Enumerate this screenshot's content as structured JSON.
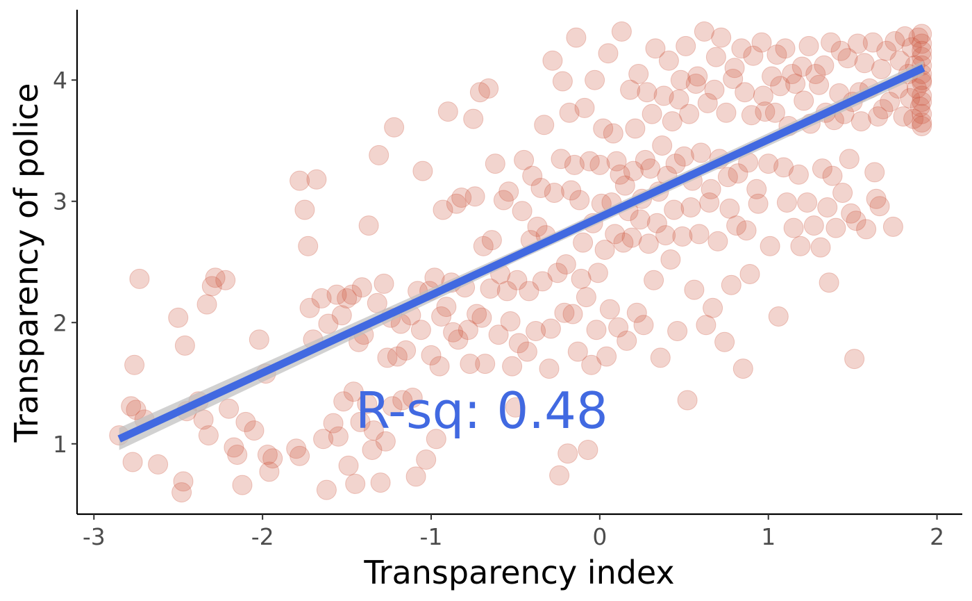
{
  "chart_data": {
    "type": "scatter",
    "title": "",
    "xlabel": "Transparency index",
    "ylabel": "Transparency of police",
    "xlim": [
      -3.1,
      2.15
    ],
    "ylim": [
      0.42,
      4.58
    ],
    "xticks": [
      -3,
      -2,
      -1,
      0,
      1,
      2
    ],
    "xtick_labels": [
      "-3",
      "-2",
      "-1",
      "0",
      "1",
      "2"
    ],
    "yticks": [
      1,
      2,
      3,
      4
    ],
    "ytick_labels": [
      "1",
      "2",
      "3",
      "4"
    ],
    "grid": false,
    "legend": "none",
    "point_color": "#cd533b",
    "point_opacity": 0.25,
    "fit_color": "#4169e1",
    "ci_color": "#bdbdbd",
    "fit_line": {
      "x": [
        -2.85,
        1.92
      ],
      "y": [
        1.04,
        4.1
      ]
    },
    "annotation": {
      "text": "R-sq: 0.48",
      "x": -0.7,
      "y": 1.13
    },
    "points": [
      [
        -2.85,
        1.07
      ],
      [
        -2.78,
        1.31
      ],
      [
        -2.77,
        0.85
      ],
      [
        -2.76,
        1.65
      ],
      [
        -2.75,
        1.28
      ],
      [
        -2.73,
        2.36
      ],
      [
        -2.7,
        1.2
      ],
      [
        -2.62,
        0.83
      ],
      [
        -2.5,
        2.04
      ],
      [
        -2.48,
        0.6
      ],
      [
        -2.47,
        0.69
      ],
      [
        -2.46,
        1.81
      ],
      [
        -2.45,
        1.27
      ],
      [
        -2.38,
        1.35
      ],
      [
        -2.35,
        1.2
      ],
      [
        -2.33,
        2.15
      ],
      [
        -2.32,
        1.07
      ],
      [
        -2.3,
        2.3
      ],
      [
        -2.28,
        2.37
      ],
      [
        -2.22,
        2.35
      ],
      [
        -2.2,
        1.29
      ],
      [
        -2.17,
        0.97
      ],
      [
        -2.15,
        0.91
      ],
      [
        -2.12,
        0.66
      ],
      [
        -2.1,
        1.18
      ],
      [
        -2.05,
        1.11
      ],
      [
        -2.02,
        1.86
      ],
      [
        -1.98,
        1.58
      ],
      [
        -1.97,
        0.91
      ],
      [
        -1.96,
        0.77
      ],
      [
        -1.94,
        0.88
      ],
      [
        -1.8,
        0.96
      ],
      [
        -1.78,
        0.9
      ],
      [
        -1.78,
        3.17
      ],
      [
        -1.75,
        2.93
      ],
      [
        -1.73,
        2.63
      ],
      [
        -1.72,
        2.12
      ],
      [
        -1.7,
        1.86
      ],
      [
        -1.68,
        3.18
      ],
      [
        -1.65,
        2.2
      ],
      [
        -1.64,
        1.04
      ],
      [
        -1.62,
        0.62
      ],
      [
        -1.61,
        1.99
      ],
      [
        -1.58,
        1.17
      ],
      [
        -1.56,
        2.23
      ],
      [
        -1.55,
        1.06
      ],
      [
        -1.53,
        2.06
      ],
      [
        -1.52,
        1.35
      ],
      [
        -1.5,
        2.2
      ],
      [
        -1.49,
        0.82
      ],
      [
        -1.47,
        2.23
      ],
      [
        -1.46,
        1.43
      ],
      [
        -1.45,
        0.67
      ],
      [
        -1.43,
        1.84
      ],
      [
        -1.42,
        1.18
      ],
      [
        -1.41,
        2.29
      ],
      [
        -1.4,
        1.9
      ],
      [
        -1.38,
        1.33
      ],
      [
        -1.37,
        2.8
      ],
      [
        -1.35,
        0.95
      ],
      [
        -1.34,
        1.11
      ],
      [
        -1.32,
        2.16
      ],
      [
        -1.31,
        3.38
      ],
      [
        -1.3,
        0.68
      ],
      [
        -1.28,
        2.32
      ],
      [
        -1.27,
        1.02
      ],
      [
        -1.26,
        1.71
      ],
      [
        -1.24,
        2.04
      ],
      [
        -1.23,
        1.31
      ],
      [
        -1.22,
        3.61
      ],
      [
        -1.2,
        1.72
      ],
      [
        -1.18,
        1.99
      ],
      [
        -1.17,
        1.36
      ],
      [
        -1.15,
        1.77
      ],
      [
        -1.12,
        2.06
      ],
      [
        -1.11,
        1.38
      ],
      [
        -1.09,
        0.73
      ],
      [
        -1.08,
        2.26
      ],
      [
        -1.06,
        1.94
      ],
      [
        -1.05,
        3.25
      ],
      [
        -1.03,
        0.87
      ],
      [
        -1.01,
        2.26
      ],
      [
        -1.0,
        1.73
      ],
      [
        -0.98,
        2.37
      ],
      [
        -0.97,
        1.04
      ],
      [
        -0.95,
        1.64
      ],
      [
        -0.94,
        2.05
      ],
      [
        -0.93,
        2.93
      ],
      [
        -0.91,
        2.13
      ],
      [
        -0.9,
        3.74
      ],
      [
        -0.88,
        2.33
      ],
      [
        -0.87,
        1.92
      ],
      [
        -0.85,
        2.98
      ],
      [
        -0.84,
        1.86
      ],
      [
        -0.82,
        3.03
      ],
      [
        -0.8,
        2.29
      ],
      [
        -0.78,
        1.94
      ],
      [
        -0.77,
        1.66
      ],
      [
        -0.75,
        3.68
      ],
      [
        -0.74,
        3.04
      ],
      [
        -0.73,
        2.07
      ],
      [
        -0.71,
        3.9
      ],
      [
        -0.7,
        2.04
      ],
      [
        -0.69,
        2.63
      ],
      [
        -0.68,
        1.66
      ],
      [
        -0.66,
        3.93
      ],
      [
        -0.65,
        2.28
      ],
      [
        -0.64,
        2.68
      ],
      [
        -0.62,
        3.31
      ],
      [
        -0.6,
        1.9
      ],
      [
        -0.59,
        2.4
      ],
      [
        -0.57,
        3.01
      ],
      [
        -0.55,
        2.26
      ],
      [
        -0.54,
        3.08
      ],
      [
        -0.53,
        2.01
      ],
      [
        -0.52,
        1.64
      ],
      [
        -0.5,
        1.3
      ],
      [
        -0.49,
        2.35
      ],
      [
        -0.48,
        1.83
      ],
      [
        -0.46,
        2.92
      ],
      [
        -0.45,
        3.34
      ],
      [
        -0.43,
        1.76
      ],
      [
        -0.42,
        2.26
      ],
      [
        -0.41,
        2.68
      ],
      [
        -0.4,
        3.21
      ],
      [
        -0.38,
        1.93
      ],
      [
        -0.37,
        2.79
      ],
      [
        -0.35,
        3.11
      ],
      [
        -0.34,
        2.34
      ],
      [
        -0.33,
        3.63
      ],
      [
        -0.32,
        2.72
      ],
      [
        -0.3,
        1.62
      ],
      [
        -0.29,
        1.95
      ],
      [
        -0.28,
        4.16
      ],
      [
        -0.27,
        3.07
      ],
      [
        -0.25,
        2.41
      ],
      [
        -0.24,
        0.74
      ],
      [
        -0.23,
        3.35
      ],
      [
        -0.22,
        3.99
      ],
      [
        -0.21,
        2.08
      ],
      [
        -0.2,
        2.48
      ],
      [
        -0.19,
        0.92
      ],
      [
        -0.18,
        3.73
      ],
      [
        -0.17,
        3.09
      ],
      [
        -0.16,
        2.07
      ],
      [
        -0.15,
        3.3
      ],
      [
        -0.14,
        4.35
      ],
      [
        -0.13,
        1.76
      ],
      [
        -0.12,
        3.01
      ],
      [
        -0.11,
        2.36
      ],
      [
        -0.1,
        2.66
      ],
      [
        -0.09,
        3.77
      ],
      [
        -0.08,
        2.21
      ],
      [
        -0.07,
        0.95
      ],
      [
        -0.06,
        3.33
      ],
      [
        -0.05,
        1.65
      ],
      [
        -0.04,
        2.82
      ],
      [
        -0.03,
        4.0
      ],
      [
        -0.02,
        1.94
      ],
      [
        -0.01,
        2.41
      ],
      [
        0.0,
        3.3
      ],
      [
        0.01,
        2.98
      ],
      [
        0.02,
        3.6
      ],
      [
        0.03,
        2.6
      ],
      [
        0.04,
        1.72
      ],
      [
        0.05,
        4.22
      ],
      [
        0.06,
        2.11
      ],
      [
        0.07,
        2.99
      ],
      [
        0.08,
        3.56
      ],
      [
        0.09,
        2.73
      ],
      [
        0.1,
        3.33
      ],
      [
        0.11,
        1.96
      ],
      [
        0.12,
        3.22
      ],
      [
        0.13,
        4.4
      ],
      [
        0.14,
        2.66
      ],
      [
        0.15,
        3.13
      ],
      [
        0.16,
        1.85
      ],
      [
        0.17,
        2.92
      ],
      [
        0.18,
        3.92
      ],
      [
        0.19,
        2.7
      ],
      [
        0.2,
        3.25
      ],
      [
        0.21,
        3.6
      ],
      [
        0.22,
        2.08
      ],
      [
        0.23,
        4.05
      ],
      [
        0.24,
        2.85
      ],
      [
        0.25,
        3.02
      ],
      [
        0.26,
        1.98
      ],
      [
        0.27,
        3.34
      ],
      [
        0.28,
        3.9
      ],
      [
        0.29,
        2.65
      ],
      [
        0.3,
        3.27
      ],
      [
        0.31,
        3.72
      ],
      [
        0.32,
        2.35
      ],
      [
        0.33,
        4.26
      ],
      [
        0.34,
        2.82
      ],
      [
        0.35,
        3.08
      ],
      [
        0.36,
        1.71
      ],
      [
        0.37,
        3.46
      ],
      [
        0.38,
        3.87
      ],
      [
        0.39,
        2.72
      ],
      [
        0.4,
        3.21
      ],
      [
        0.41,
        4.16
      ],
      [
        0.42,
        2.52
      ],
      [
        0.43,
        3.66
      ],
      [
        0.44,
        2.93
      ],
      [
        0.45,
        3.31
      ],
      [
        0.46,
        1.93
      ],
      [
        0.47,
        3.84
      ],
      [
        0.48,
        4.0
      ],
      [
        0.49,
        2.71
      ],
      [
        0.5,
        3.37
      ],
      [
        0.51,
        4.28
      ],
      [
        0.52,
        1.36
      ],
      [
        0.53,
        3.72
      ],
      [
        0.54,
        2.95
      ],
      [
        0.55,
        3.17
      ],
      [
        0.56,
        2.27
      ],
      [
        0.57,
        3.97
      ],
      [
        0.58,
        4.03
      ],
      [
        0.59,
        2.73
      ],
      [
        0.6,
        3.4
      ],
      [
        0.62,
        4.4
      ],
      [
        0.63,
        1.98
      ],
      [
        0.64,
        3.81
      ],
      [
        0.65,
        2.99
      ],
      [
        0.66,
        3.1
      ],
      [
        0.67,
        2.12
      ],
      [
        0.68,
        3.92
      ],
      [
        0.69,
        4.19
      ],
      [
        0.7,
        2.67
      ],
      [
        0.71,
        3.35
      ],
      [
        0.72,
        4.35
      ],
      [
        0.74,
        1.84
      ],
      [
        0.75,
        3.73
      ],
      [
        0.76,
        3.2
      ],
      [
        0.77,
        2.94
      ],
      [
        0.78,
        2.31
      ],
      [
        0.79,
        4.01
      ],
      [
        0.8,
        4.1
      ],
      [
        0.81,
        2.8
      ],
      [
        0.82,
        3.23
      ],
      [
        0.84,
        4.26
      ],
      [
        0.85,
        1.62
      ],
      [
        0.86,
        3.9
      ],
      [
        0.87,
        2.76
      ],
      [
        0.88,
        3.32
      ],
      [
        0.89,
        2.4
      ],
      [
        0.9,
        3.71
      ],
      [
        0.91,
        4.2
      ],
      [
        0.93,
        3.1
      ],
      [
        0.94,
        2.98
      ],
      [
        0.96,
        4.31
      ],
      [
        0.97,
        3.87
      ],
      [
        0.98,
        3.74
      ],
      [
        1.0,
        3.31
      ],
      [
        1.01,
        2.63
      ],
      [
        1.02,
        4.03
      ],
      [
        1.04,
        3.73
      ],
      [
        1.05,
        4.21
      ],
      [
        1.06,
        2.05
      ],
      [
        1.07,
        3.95
      ],
      [
        1.09,
        3.28
      ],
      [
        1.1,
        4.26
      ],
      [
        1.11,
        2.99
      ],
      [
        1.12,
        3.62
      ],
      [
        1.14,
        4.05
      ],
      [
        1.15,
        2.78
      ],
      [
        1.16,
        3.97
      ],
      [
        1.18,
        3.22
      ],
      [
        1.19,
        2.63
      ],
      [
        1.2,
        4.11
      ],
      [
        1.21,
        3.83
      ],
      [
        1.23,
        2.99
      ],
      [
        1.24,
        4.28
      ],
      [
        1.25,
        3.64
      ],
      [
        1.27,
        2.8
      ],
      [
        1.28,
        4.05
      ],
      [
        1.3,
        3.96
      ],
      [
        1.31,
        2.62
      ],
      [
        1.32,
        3.27
      ],
      [
        1.33,
        4.12
      ],
      [
        1.34,
        3.73
      ],
      [
        1.35,
        2.95
      ],
      [
        1.36,
        2.33
      ],
      [
        1.37,
        4.31
      ],
      [
        1.38,
        3.21
      ],
      [
        1.39,
        3.67
      ],
      [
        1.4,
        2.78
      ],
      [
        1.42,
        3.89
      ],
      [
        1.43,
        4.24
      ],
      [
        1.44,
        3.07
      ],
      [
        1.45,
        3.72
      ],
      [
        1.47,
        4.18
      ],
      [
        1.48,
        3.35
      ],
      [
        1.49,
        2.9
      ],
      [
        1.5,
        3.82
      ],
      [
        1.51,
        1.7
      ],
      [
        1.52,
        2.84
      ],
      [
        1.53,
        4.3
      ],
      [
        1.54,
        3.9
      ],
      [
        1.55,
        3.66
      ],
      [
        1.57,
        4.14
      ],
      [
        1.58,
        2.77
      ],
      [
        1.6,
        3.93
      ],
      [
        1.62,
        4.31
      ],
      [
        1.63,
        3.24
      ],
      [
        1.64,
        3.02
      ],
      [
        1.65,
        3.7
      ],
      [
        1.66,
        2.96
      ],
      [
        1.67,
        4.09
      ],
      [
        1.68,
        3.76
      ],
      [
        1.7,
        4.24
      ],
      [
        1.72,
        3.82
      ],
      [
        1.74,
        2.79
      ],
      [
        1.75,
        4.32
      ],
      [
        1.77,
        3.93
      ],
      [
        1.78,
        4.16
      ],
      [
        1.8,
        3.7
      ],
      [
        1.81,
        4.36
      ],
      [
        1.83,
        4.05
      ],
      [
        1.84,
        3.85
      ],
      [
        1.85,
        4.27
      ],
      [
        1.86,
        3.68
      ],
      [
        1.87,
        4.12
      ],
      [
        1.88,
        3.93
      ],
      [
        1.89,
        4.35
      ],
      [
        1.9,
        3.78
      ],
      [
        1.91,
        4.19
      ],
      [
        1.91,
        3.62
      ],
      [
        1.91,
        4.05
      ],
      [
        1.91,
        3.87
      ],
      [
        1.91,
        4.3
      ],
      [
        1.91,
        3.72
      ],
      [
        1.91,
        4.12
      ],
      [
        1.91,
        3.98
      ],
      [
        1.91,
        4.38
      ],
      [
        1.91,
        3.65
      ],
      [
        1.91,
        4.24
      ],
      [
        1.91,
        3.82
      ],
      [
        1.91,
        4.0
      ]
    ],
    "n_points_note": ""
  }
}
